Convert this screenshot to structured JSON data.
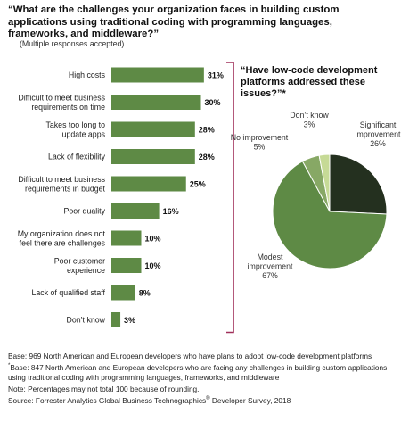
{
  "title": "“What are the challenges your organization faces in building custom applications using traditional coding with programming languages, frameworks, and middleware?”",
  "subtitle": "(Multiple responses accepted)",
  "pie_title": "“Have low-code development platforms addressed these issues?”*",
  "notes": {
    "base1": "Base: 969 North American and European developers who have plans to adopt low-code development platforms",
    "base2_mark": "*",
    "base2": "Base: 847 North American and European developers who are facing any challenges in building custom applications using traditional coding with programming languages, frameworks, and middleware",
    "note": "Note: Percentages may not total 100 because of rounding.",
    "source_prefix": "Source: Forrester Analytics Global Business Technographics",
    "source_reg": "®",
    "source_suffix": " Developer Survey, 2018"
  },
  "colors": {
    "bar": "#5e8a45",
    "bracket": "#a0305a",
    "pie_significant": "#24301f",
    "pie_modest": "#5e8a45",
    "pie_no_improvement": "#87a865",
    "pie_dont_know": "#c6da96"
  },
  "chart_data": [
    {
      "type": "bar",
      "orientation": "horizontal",
      "categories": [
        [
          "High costs"
        ],
        [
          "Difficult to meet business",
          "requirements on time"
        ],
        [
          "Takes too long to",
          "update apps"
        ],
        [
          "Lack of flexibility"
        ],
        [
          "Difficult to meet business",
          "requirements in budget"
        ],
        [
          "Poor quality"
        ],
        [
          "My organization does not",
          "feel there are challenges"
        ],
        [
          "Poor customer",
          "experience"
        ],
        [
          "Lack of qualified staff"
        ],
        [
          "Don’t know"
        ]
      ],
      "values": [
        31,
        30,
        28,
        28,
        25,
        16,
        10,
        10,
        8,
        3
      ],
      "value_labels": [
        "31%",
        "30%",
        "28%",
        "28%",
        "25%",
        "16%",
        "10%",
        "10%",
        "8%",
        "3%"
      ]
    },
    {
      "type": "pie",
      "slices": [
        {
          "label": [
            "Significant",
            "improvement"
          ],
          "value": 26,
          "value_label": "26%"
        },
        {
          "label": [
            "Modest",
            "improvement"
          ],
          "value": 67,
          "value_label": "67%"
        },
        {
          "label": [
            "No improvement"
          ],
          "value": 5,
          "value_label": "5%"
        },
        {
          "label": [
            "Don’t know"
          ],
          "value": 3,
          "value_label": "3%"
        }
      ]
    }
  ]
}
